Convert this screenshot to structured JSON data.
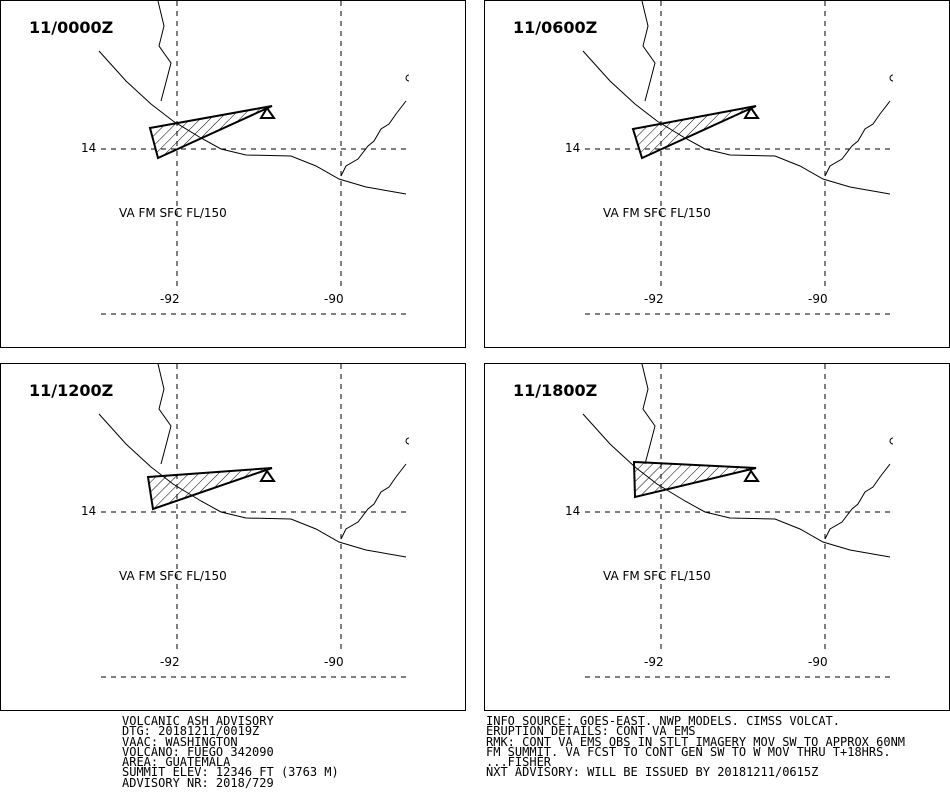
{
  "panels": [
    {
      "time": "11/0000Z",
      "lat_label": "14",
      "lon_labels": [
        "-92",
        "-90"
      ],
      "text": "VA FM SFC FL/150"
    },
    {
      "time": "11/0600Z",
      "lat_label": "14",
      "lon_labels": [
        "-92",
        "-90"
      ],
      "text": "VA FM SFC FL/150"
    },
    {
      "time": "11/1200Z",
      "lat_label": "14",
      "lon_labels": [
        "-92",
        "-90"
      ],
      "text": "VA FM SFC FL/150"
    },
    {
      "time": "11/1800Z",
      "lat_label": "14",
      "lon_labels": [
        "-92",
        "-90"
      ],
      "text": "VA FM SFC FL/150"
    }
  ],
  "advisory": {
    "title": "VOLCANIC ASH ADVISORY",
    "dtg": "DTG: 20181211/0019Z",
    "vaac": "VAAC: WASHINGTON",
    "volcano": "VOLCANO: FUEGO 342090",
    "area": "AREA: GUATEMALA",
    "summit": "SUMMIT ELEV: 12346 FT (3763 M)",
    "advisory_nr": "ADVISORY NR: 2018/729"
  },
  "info": {
    "source": "INFO SOURCE: GOES-EAST. NWP MODELS. CIMSS VOLCAT.",
    "eruption": "ERUPTION DETAILS: CONT VA EMS",
    "rmk1": "RMK: CONT VA EMS OBS IN STLT IMAGERY MOV SW TO APPROX 60NM",
    "rmk2": "FM SUMMIT. VA FCST TO CONT GEN SW TO W MOV THRU T+18HRS.",
    "forecaster": "...FISHER",
    "next": "NXT ADVISORY: WILL BE ISSUED BY 20181211/0615Z"
  }
}
